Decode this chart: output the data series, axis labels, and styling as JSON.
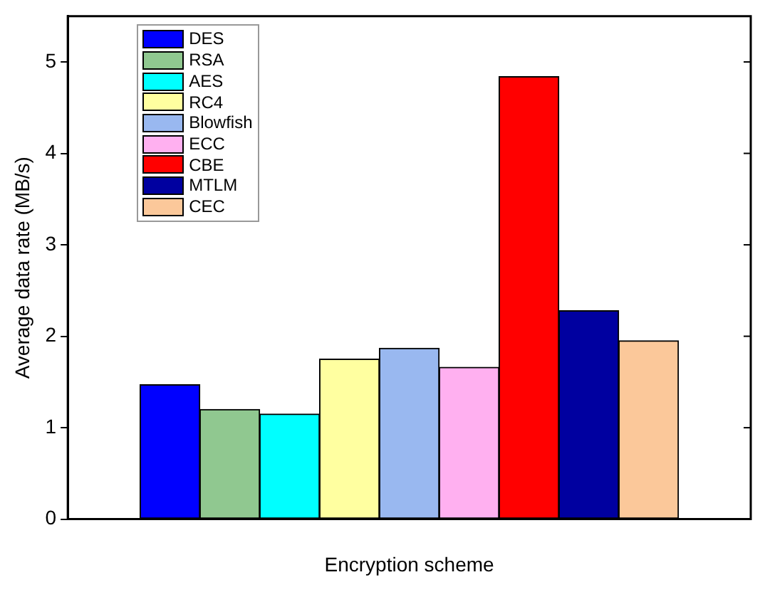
{
  "chart_data": {
    "type": "bar",
    "xlabel": "Encryption scheme",
    "ylabel": "Average data rate (MB/s)",
    "categories": [
      null
    ],
    "series": [
      {
        "name": "DES",
        "color": "#0000ff",
        "values": [
          1.47
        ]
      },
      {
        "name": "RSA",
        "color": "#90c890",
        "values": [
          1.2
        ]
      },
      {
        "name": "AES",
        "color": "#00ffff",
        "values": [
          1.15
        ]
      },
      {
        "name": "RC4",
        "color": "#ffffa0",
        "values": [
          1.75
        ]
      },
      {
        "name": "Blowfish",
        "color": "#99b8f0",
        "values": [
          1.87
        ]
      },
      {
        "name": "ECC",
        "color": "#ffb0f0",
        "values": [
          1.66
        ]
      },
      {
        "name": "CBE",
        "color": "#ff0000",
        "values": [
          4.84
        ]
      },
      {
        "name": "MTLM",
        "color": "#0000a0",
        "values": [
          2.28
        ]
      },
      {
        "name": "CEC",
        "color": "#fbc89a",
        "values": [
          1.95
        ]
      }
    ],
    "ylim": [
      0,
      5.5
    ],
    "yticks": [
      0,
      1,
      2,
      3,
      4,
      5
    ],
    "grid": false,
    "legend": "top left"
  }
}
